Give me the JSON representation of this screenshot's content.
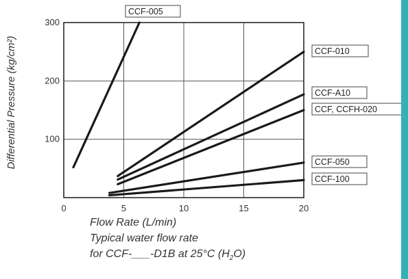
{
  "colors": {
    "accent_bar": "#2fb3b7",
    "line": "#1a1a1a",
    "grid": "#555555"
  },
  "caption": {
    "line1": "Flow Rate (L/min)",
    "line2": "Typical water flow rate",
    "line3_before_sub": "for CCF-___-D1B at 25°C (H",
    "line3_sub": "2",
    "line3_after_sub": "O)"
  },
  "chart_data": {
    "type": "line",
    "ylabel": "Differential Pressure (kg/cm²)",
    "xlabel": "Flow Rate (L/min)",
    "xlim": [
      0,
      20
    ],
    "ylim": [
      0,
      300
    ],
    "x_ticks": [
      0,
      5,
      10,
      15,
      20
    ],
    "y_ticks": [
      100,
      200,
      300
    ],
    "grid": true,
    "series": [
      {
        "name": "CCF-005",
        "x": [
          0.8,
          6.3
        ],
        "y": [
          52,
          300
        ]
      },
      {
        "name": "CCF-010",
        "x": [
          4.5,
          20
        ],
        "y": [
          37,
          250
        ]
      },
      {
        "name": "CCF-A10",
        "x": [
          4.5,
          20
        ],
        "y": [
          31,
          177
        ]
      },
      {
        "name": "CCF, CCFH-020",
        "x": [
          4.5,
          20
        ],
        "y": [
          23,
          150
        ]
      },
      {
        "name": "CCF-050",
        "x": [
          3.8,
          20
        ],
        "y": [
          8,
          60
        ]
      },
      {
        "name": "CCF-100",
        "x": [
          3.8,
          20
        ],
        "y": [
          4,
          30
        ]
      }
    ]
  }
}
